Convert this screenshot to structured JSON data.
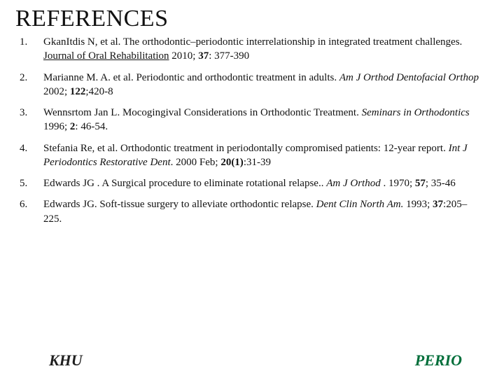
{
  "title": "REFERENCES",
  "refs": [
    {
      "n": "1.",
      "html": "GkanItdis N, et al. The orthodontic–periodontic interrelationship in integrated treatment challenges. <span class=\"u\">Journal of Oral Rehabilitation</span> 2010; <span class=\"bold\">37</span>: 377-390"
    },
    {
      "n": "2.",
      "html": "Marianne M. A. et al.  Periodontic and orthodontic treatment in adults. <span class=\"italic\">Am J Orthod Dentofacial Orthop</span>  2002; <span class=\"bold\">122</span>;420-8"
    },
    {
      "n": "3.",
      "html": " Wennsrtom Jan L. Mocogingival  Considerations  in Orthodontic Treatment. <span class=\"italic\">Seminars in Orthodontics</span> 1996; <span class=\"bold\">2</span>: 46-54."
    },
    {
      "n": "4.",
      "html": "Stefania Re, et al. Orthodontic treatment in periodontally compromised patients: 12-year report. <span class=\"italic\">Int J Periodontics Restorative Dent</span>. 2000 Feb; <span class=\"bold\">20(1)</span>:31-39"
    },
    {
      "n": "5.",
      "html": "Edwards JG . A Surgical procedure to eliminate rotational relapse.. <span class=\"italic\">Am J Orthod</span> . 1970; <span class=\"bold\">57</span>; 35-46"
    },
    {
      "n": "6.",
      "html": "Edwards JG. Soft-tissue surgery to alleviate orthodontic relapse. <span class=\"italic\">Dent Clin North  Am.</span> 1993; <span class=\"bold\">37</span>:205–225."
    }
  ],
  "footer": {
    "left": "KHU",
    "right": "PERIO"
  },
  "colors": {
    "bg": "#ffffff",
    "text": "#111111",
    "perio": "#006e3a"
  }
}
